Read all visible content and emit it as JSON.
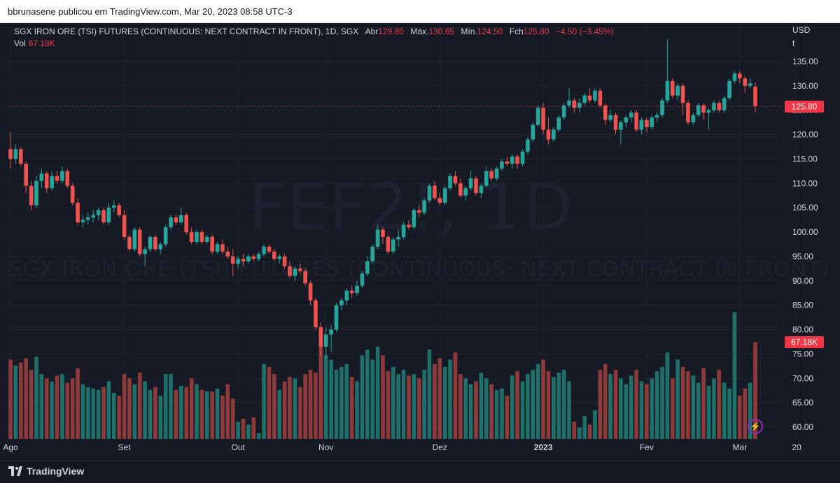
{
  "header": {
    "credit": "bbrunasene publicou em TradingView.com, Mar 20, 2023 08:58 UTC-3"
  },
  "legend": {
    "symbol": "SGX IRON ORE (TSI) FUTURES (CONTINUOUS: NEXT CONTRACT IN FRONT), 1D, SGX",
    "open_label": "Abr",
    "open_value": "129.80",
    "high_label": "Máx.",
    "high_value": "130.65",
    "low_label": "Mín.",
    "low_value": "124.50",
    "close_label": "Fch",
    "close_value": "125.80",
    "change": "−4.50 (−3.45%)",
    "volume_label": "Vol",
    "volume_value": "67.18K"
  },
  "watermark": {
    "ticker": "FEF2!, 1D",
    "name": "SGX IRON ORE (TSI) FUTURES (CONTINUOUS: NEXT CONTRACT IN FRONT)"
  },
  "footer": {
    "brand": "TradingView"
  },
  "colors": {
    "up": "#26a69a",
    "down": "#ef5350",
    "vol_up": "#1f6f6a",
    "vol_down": "#8f3a3a",
    "price_tag": "#f23645",
    "grid": "#1f2330",
    "axis_text": "#d1d4dc"
  },
  "chart_data": {
    "type": "candlestick",
    "title": "SGX IRON ORE (TSI) FUTURES (CONTINUOUS: NEXT CONTRACT IN FRONT), 1D, SGX",
    "currency_label": "USD",
    "unit_label": "t",
    "ylim": [
      58,
      140
    ],
    "y_ticks": [
      "60.00",
      "65.00",
      "70.00",
      "75.00",
      "80.00",
      "85.00",
      "90.00",
      "95.00",
      "100.00",
      "105.00",
      "110.00",
      "115.00",
      "120.00",
      "125.00",
      "130.00",
      "135.00"
    ],
    "x_ticks": [
      "Ago",
      "Set",
      "Out",
      "Nov",
      "Dez",
      "2023",
      "Fev",
      "Mar",
      "20"
    ],
    "x_tick_index": [
      0,
      22,
      44,
      61,
      83,
      103,
      123,
      141,
      152
    ],
    "last_price": "125.80",
    "last_price_value": 125.8,
    "last_volume": "67.18K",
    "volume_ylim": [
      0,
      80
    ],
    "candles": [
      [
        117.0,
        120.5,
        113.0,
        115.0,
        55
      ],
      [
        115.0,
        118.0,
        114.0,
        117.0,
        51
      ],
      [
        117.0,
        117.5,
        113.5,
        114.0,
        53
      ],
      [
        114.0,
        114.5,
        108.0,
        109.5,
        56
      ],
      [
        109.5,
        110.5,
        104.5,
        105.5,
        48
      ],
      [
        105.5,
        111.5,
        105.0,
        110.5,
        57
      ],
      [
        110.5,
        113.0,
        109.0,
        112.0,
        45
      ],
      [
        112.0,
        112.5,
        108.0,
        109.0,
        42
      ],
      [
        109.0,
        112.5,
        108.5,
        111.5,
        40
      ],
      [
        111.5,
        112.5,
        110.0,
        110.5,
        44
      ],
      [
        110.5,
        113.5,
        110.0,
        112.5,
        45
      ],
      [
        112.5,
        113.0,
        109.0,
        109.5,
        39
      ],
      [
        109.5,
        110.0,
        105.5,
        106.0,
        42
      ],
      [
        106.0,
        107.0,
        101.5,
        102.0,
        49
      ],
      [
        102.0,
        103.5,
        101.0,
        102.5,
        38
      ],
      [
        102.5,
        104.0,
        101.5,
        103.0,
        36
      ],
      [
        103.0,
        104.5,
        102.0,
        103.5,
        35
      ],
      [
        103.5,
        105.0,
        102.5,
        104.5,
        34
      ],
      [
        104.5,
        105.0,
        101.5,
        102.0,
        36
      ],
      [
        102.0,
        106.0,
        101.5,
        105.0,
        40
      ],
      [
        105.0,
        106.5,
        104.0,
        105.5,
        32
      ],
      [
        105.5,
        106.0,
        103.0,
        103.5,
        30
      ],
      [
        103.5,
        104.5,
        98.5,
        99.0,
        45
      ],
      [
        99.0,
        99.5,
        96.0,
        96.5,
        42
      ],
      [
        96.5,
        101.0,
        96.0,
        100.5,
        38
      ],
      [
        100.5,
        101.0,
        95.0,
        95.5,
        46
      ],
      [
        95.5,
        97.0,
        93.0,
        96.5,
        40
      ],
      [
        96.5,
        99.5,
        96.0,
        99.0,
        34
      ],
      [
        99.0,
        99.5,
        96.0,
        96.5,
        36
      ],
      [
        96.5,
        98.0,
        95.5,
        97.5,
        30
      ],
      [
        97.5,
        101.5,
        97.0,
        101.0,
        45
      ],
      [
        101.0,
        103.5,
        100.5,
        103.0,
        45
      ],
      [
        103.0,
        103.5,
        101.5,
        102.0,
        34
      ],
      [
        102.0,
        105.0,
        101.5,
        103.5,
        37
      ],
      [
        103.5,
        104.0,
        99.5,
        100.0,
        36
      ],
      [
        100.0,
        101.0,
        97.5,
        98.0,
        42
      ],
      [
        98.0,
        100.5,
        97.5,
        100.0,
        38
      ],
      [
        100.0,
        100.5,
        97.5,
        98.0,
        34
      ],
      [
        98.0,
        99.5,
        97.5,
        99.0,
        33
      ],
      [
        99.0,
        99.5,
        95.5,
        96.0,
        33
      ],
      [
        96.0,
        98.0,
        95.5,
        97.5,
        35
      ],
      [
        97.5,
        98.5,
        95.5,
        96.0,
        30
      ],
      [
        96.0,
        97.0,
        94.5,
        95.0,
        38
      ],
      [
        95.0,
        96.5,
        91.0,
        93.5,
        28
      ],
      [
        93.5,
        95.0,
        92.5,
        94.5,
        12
      ],
      [
        94.5,
        95.5,
        93.0,
        94.0,
        14
      ],
      [
        94.0,
        95.5,
        93.5,
        95.0,
        10
      ],
      [
        95.0,
        95.5,
        94.0,
        94.5,
        15
      ],
      [
        94.5,
        96.0,
        94.0,
        95.5,
        4
      ],
      [
        95.5,
        97.5,
        95.0,
        97.0,
        52
      ],
      [
        97.0,
        97.5,
        95.5,
        96.0,
        50
      ],
      [
        96.0,
        96.5,
        94.0,
        94.5,
        45
      ],
      [
        94.5,
        95.5,
        93.5,
        95.0,
        34
      ],
      [
        95.0,
        95.5,
        92.5,
        93.0,
        40
      ],
      [
        93.0,
        94.0,
        90.5,
        91.0,
        43
      ],
      [
        91.0,
        93.0,
        90.0,
        92.5,
        42
      ],
      [
        92.5,
        93.5,
        91.5,
        92.0,
        36
      ],
      [
        92.0,
        92.5,
        89.0,
        89.5,
        45
      ],
      [
        89.5,
        90.0,
        85.0,
        86.0,
        48
      ],
      [
        86.0,
        86.5,
        80.0,
        80.5,
        46
      ],
      [
        80.5,
        81.5,
        74.5,
        76.5,
        65
      ],
      [
        76.5,
        80.5,
        74.0,
        79.0,
        58
      ],
      [
        79.0,
        81.0,
        75.5,
        80.0,
        55
      ],
      [
        80.0,
        85.5,
        79.5,
        85.0,
        48
      ],
      [
        85.0,
        86.5,
        84.0,
        86.0,
        50
      ],
      [
        86.0,
        88.5,
        85.0,
        88.0,
        52
      ],
      [
        88.0,
        89.0,
        86.5,
        87.5,
        43
      ],
      [
        87.5,
        90.0,
        87.0,
        89.0,
        40
      ],
      [
        89.0,
        92.0,
        88.5,
        91.5,
        58
      ],
      [
        91.5,
        95.0,
        91.0,
        94.0,
        62
      ],
      [
        94.0,
        97.5,
        93.5,
        97.0,
        55
      ],
      [
        97.0,
        101.5,
        96.5,
        100.5,
        64
      ],
      [
        100.5,
        101.0,
        97.5,
        99.0,
        58
      ],
      [
        99.0,
        99.5,
        95.5,
        96.0,
        47
      ],
      [
        96.0,
        99.0,
        95.5,
        98.5,
        50
      ],
      [
        98.5,
        100.5,
        97.0,
        99.0,
        45
      ],
      [
        99.0,
        102.0,
        98.5,
        101.5,
        48
      ],
      [
        101.5,
        102.5,
        100.5,
        101.0,
        44
      ],
      [
        101.0,
        105.0,
        100.5,
        104.5,
        45
      ],
      [
        104.5,
        105.5,
        103.0,
        104.0,
        42
      ],
      [
        104.0,
        107.0,
        103.5,
        106.5,
        48
      ],
      [
        106.5,
        110.0,
        106.0,
        109.5,
        62
      ],
      [
        109.5,
        110.5,
        106.5,
        107.0,
        52
      ],
      [
        107.0,
        108.0,
        105.5,
        106.0,
        56
      ],
      [
        106.0,
        109.5,
        105.5,
        109.0,
        50
      ],
      [
        109.0,
        112.0,
        108.5,
        111.5,
        55
      ],
      [
        111.5,
        112.5,
        109.5,
        110.0,
        60
      ],
      [
        110.0,
        111.0,
        107.0,
        107.5,
        45
      ],
      [
        107.5,
        109.5,
        106.5,
        109.0,
        42
      ],
      [
        109.0,
        112.5,
        108.5,
        111.0,
        38
      ],
      [
        111.0,
        111.5,
        107.5,
        108.0,
        40
      ],
      [
        108.0,
        110.0,
        107.0,
        109.5,
        46
      ],
      [
        109.5,
        113.5,
        109.0,
        112.5,
        42
      ],
      [
        112.5,
        113.0,
        110.5,
        111.0,
        38
      ],
      [
        111.0,
        113.5,
        110.5,
        113.0,
        34
      ],
      [
        113.0,
        115.0,
        112.5,
        114.5,
        35
      ],
      [
        114.5,
        115.5,
        113.5,
        114.0,
        30
      ],
      [
        114.0,
        116.0,
        113.0,
        115.5,
        44
      ],
      [
        115.5,
        116.0,
        113.0,
        114.0,
        47
      ],
      [
        114.0,
        117.0,
        113.5,
        116.5,
        40
      ],
      [
        116.5,
        119.5,
        116.0,
        119.0,
        45
      ],
      [
        119.0,
        122.5,
        118.5,
        122.0,
        48
      ],
      [
        122.0,
        126.0,
        121.5,
        125.5,
        52
      ],
      [
        125.5,
        126.5,
        120.0,
        121.0,
        55
      ],
      [
        121.0,
        123.5,
        118.0,
        119.0,
        47
      ],
      [
        119.0,
        121.5,
        118.5,
        121.0,
        43
      ],
      [
        121.0,
        124.0,
        120.5,
        123.5,
        46
      ],
      [
        123.5,
        126.5,
        123.0,
        126.0,
        48
      ],
      [
        126.0,
        129.5,
        125.5,
        127.0,
        40
      ],
      [
        127.0,
        127.5,
        124.5,
        125.5,
        12
      ],
      [
        125.5,
        127.5,
        124.5,
        126.5,
        8
      ],
      [
        126.5,
        128.5,
        126.0,
        128.0,
        16
      ],
      [
        128.0,
        129.5,
        126.5,
        127.0,
        10
      ],
      [
        127.0,
        129.5,
        126.5,
        129.0,
        20
      ],
      [
        129.0,
        129.5,
        125.5,
        126.0,
        48
      ],
      [
        126.0,
        126.5,
        122.0,
        123.0,
        52
      ],
      [
        123.0,
        125.0,
        122.5,
        124.0,
        45
      ],
      [
        124.0,
        124.5,
        120.0,
        121.0,
        48
      ],
      [
        121.0,
        123.0,
        118.0,
        122.5,
        42
      ],
      [
        122.5,
        124.0,
        121.5,
        123.5,
        38
      ],
      [
        123.5,
        125.0,
        122.5,
        124.5,
        44
      ],
      [
        124.5,
        125.0,
        120.5,
        121.0,
        48
      ],
      [
        121.0,
        123.5,
        120.0,
        123.0,
        40
      ],
      [
        123.0,
        123.5,
        120.5,
        121.5,
        38
      ],
      [
        121.5,
        124.0,
        121.0,
        123.5,
        42
      ],
      [
        123.5,
        124.5,
        122.5,
        124.0,
        47
      ],
      [
        124.0,
        127.5,
        123.5,
        127.0,
        50
      ],
      [
        127.0,
        139.5,
        126.5,
        131.0,
        60
      ],
      [
        131.0,
        131.5,
        127.5,
        128.0,
        42
      ],
      [
        128.0,
        130.5,
        127.0,
        130.0,
        55
      ],
      [
        130.0,
        130.5,
        124.0,
        126.5,
        50
      ],
      [
        126.5,
        127.0,
        122.0,
        122.5,
        47
      ],
      [
        122.5,
        124.5,
        122.0,
        124.0,
        44
      ],
      [
        124.0,
        126.5,
        123.5,
        126.0,
        39
      ],
      [
        126.0,
        126.5,
        123.0,
        124.5,
        49
      ],
      [
        124.5,
        125.5,
        121.0,
        125.0,
        37
      ],
      [
        125.0,
        127.0,
        124.5,
        126.5,
        42
      ],
      [
        126.5,
        127.0,
        124.5,
        125.0,
        48
      ],
      [
        125.0,
        128.0,
        124.5,
        127.5,
        39
      ],
      [
        127.5,
        131.5,
        127.0,
        131.0,
        35
      ],
      [
        131.0,
        133.0,
        130.5,
        132.5,
        88
      ],
      [
        132.5,
        133.0,
        130.5,
        131.5,
        30
      ],
      [
        131.5,
        132.0,
        128.5,
        130.0,
        35
      ],
      [
        130.0,
        131.5,
        129.5,
        130.5,
        39
      ],
      [
        129.8,
        130.65,
        124.5,
        125.8,
        67.18
      ]
    ]
  }
}
